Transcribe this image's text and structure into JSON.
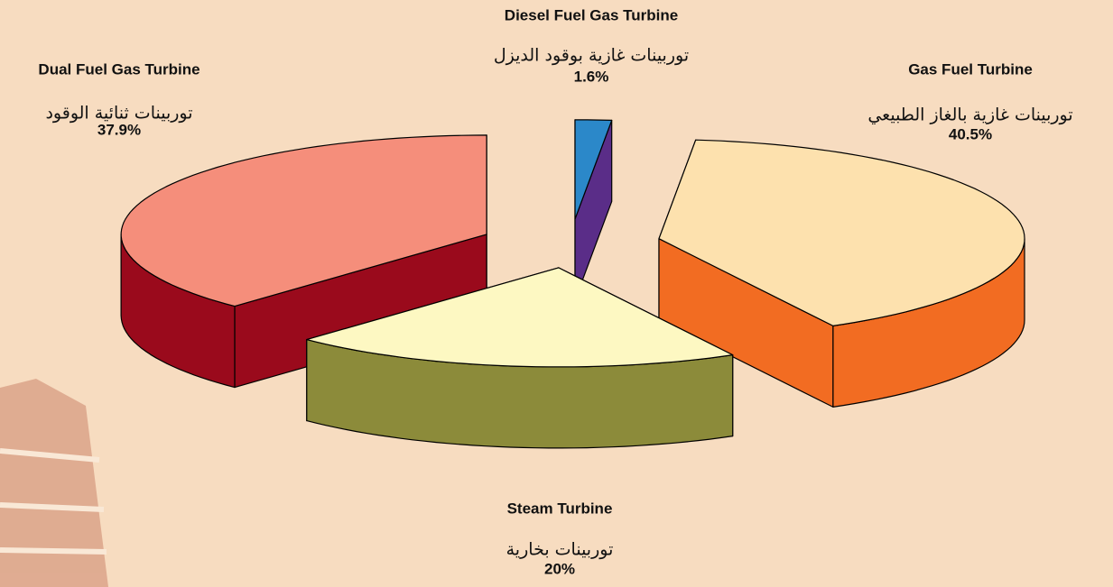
{
  "chart_data": {
    "type": "pie3d",
    "categories": [
      "Diesel Fuel Gas Turbine",
      "Gas Fuel Turbine",
      "Steam Turbine",
      "Dual Fuel Gas Turbine"
    ],
    "subtitles": [
      "توربينات غازية بوقود الديزل",
      "توربينات غازية بالغاز الطبيعي",
      "توربينات بخارية",
      "توربينات ثنائية الوقود"
    ],
    "values": [
      1.6,
      40.5,
      20,
      37.9
    ],
    "value_labels": [
      "1.6%",
      "40.5%",
      "20%",
      "37.9%"
    ],
    "colors": [
      "#2b88c9",
      "#fde1ae",
      "#fdf8c2",
      "#f58e7b"
    ],
    "side_colors": [
      "#5a2d88",
      "#f26c22",
      "#8c8b3a",
      "#9a0a1c"
    ]
  }
}
